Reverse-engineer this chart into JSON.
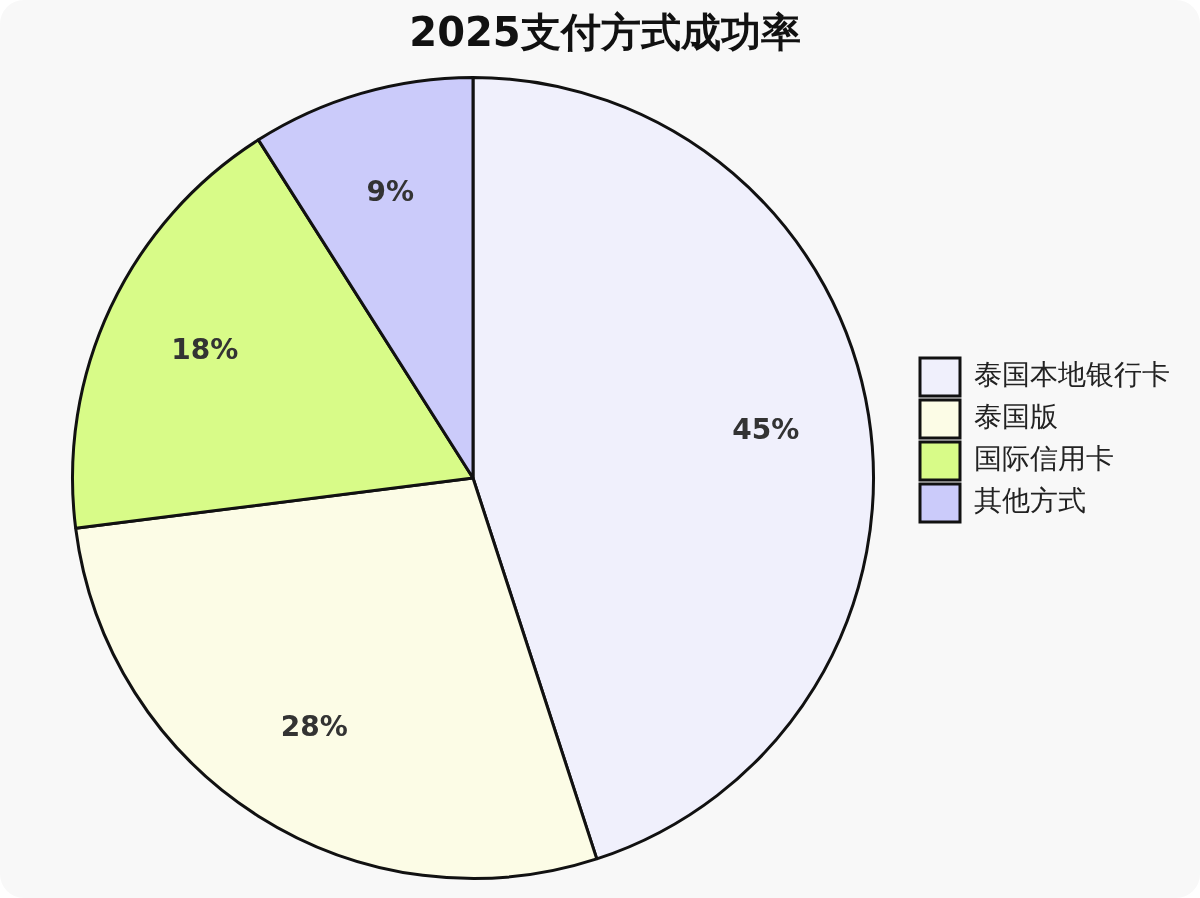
{
  "chart_data": {
    "type": "pie",
    "title": "2025支付方式成功率",
    "categories": [
      "泰国本地银行卡",
      "泰国版",
      "国际信用卡",
      "其他方式"
    ],
    "values": [
      45,
      28,
      18,
      9
    ],
    "colors": [
      "#f0f0fc",
      "#fcfce6",
      "#d8fb88",
      "#cbcbfa"
    ],
    "value_labels": [
      "45%",
      "28%",
      "18%",
      "9%"
    ],
    "legend": "right"
  }
}
